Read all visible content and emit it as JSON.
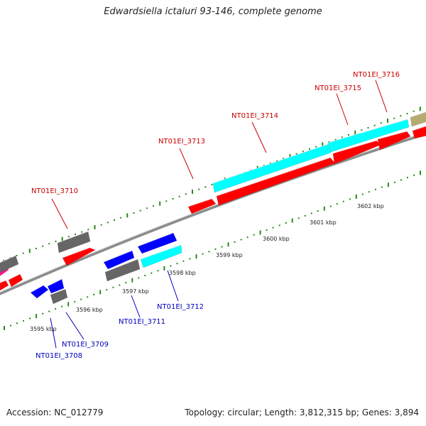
{
  "title": "Edwardsiella ictaluri 93-146, complete genome",
  "accession": "Accession: NC_012779",
  "topology": "Topology: circular; Length: 3,812,315 bp; Genes: 3,894",
  "colors": {
    "red": "#ff0000",
    "cyan": "#00ffff",
    "blue": "#0000ff",
    "gray": "#666666",
    "olive": "#b5aa70",
    "magenta": "#ff1493",
    "tick": "#2a8a1a",
    "top_label": "#cc0000",
    "bottom_label": "#0000bb"
  },
  "scale_labels": [
    "3595 kbp",
    "3596 kbp",
    "3597 kbp",
    "3598 kbp",
    "3599 kbp",
    "3600 kbp",
    "3601 kbp",
    "3602 kbp"
  ],
  "top_gene_labels": [
    "NT01EI_3710",
    "NT01EI_3713",
    "NT01EI_3714",
    "NT01EI_3715",
    "NT01EI_3716"
  ],
  "bottom_gene_labels": [
    "NT01EI_3708",
    "NT01EI_3709",
    "NT01EI_3711",
    "NT01EI_3712"
  ]
}
